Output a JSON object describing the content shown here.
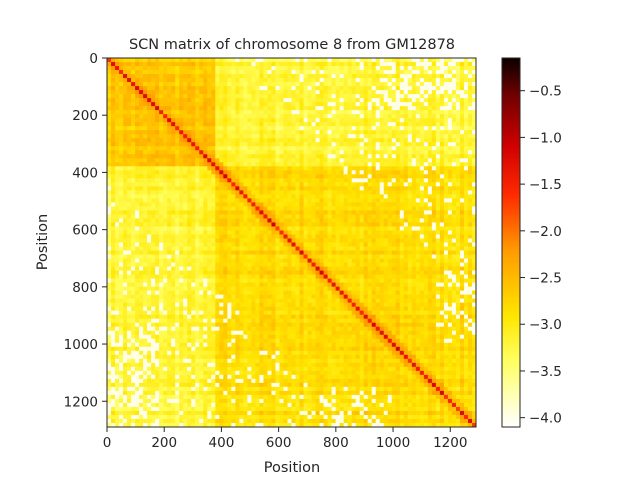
{
  "chart_data": {
    "type": "heatmap",
    "title": "SCN matrix of chromosome 8 from GM12878",
    "xlabel": "Position",
    "ylabel": "Position",
    "x_range": [
      0,
      1290
    ],
    "y_range": [
      1290,
      0
    ],
    "x_ticks": [
      0,
      200,
      400,
      600,
      800,
      1000,
      1200
    ],
    "y_ticks": [
      0,
      200,
      400,
      600,
      800,
      1000,
      1200
    ],
    "colorbar": {
      "colormap": "hot_r",
      "range": [
        -4.1,
        -0.15
      ],
      "ticks": [
        -0.5,
        -1.0,
        -1.5,
        -2.0,
        -2.5,
        -3.0,
        -3.5,
        -4.0
      ],
      "tick_labels": [
        "−0.5",
        "−1.0",
        "−1.5",
        "−2.0",
        "−2.5",
        "−3.0",
        "−3.5",
        "−4.0"
      ]
    },
    "matrix_description": {
      "diagonal_value": -1.4,
      "near_diagonal_value": -2.2,
      "block_a_range": [
        0,
        375
      ],
      "block_a_value": -2.6,
      "block_b_range": [
        375,
        1290
      ],
      "block_b_value": -2.8,
      "off_block_value": -3.2,
      "sparse_regions_value": -4.0
    }
  }
}
